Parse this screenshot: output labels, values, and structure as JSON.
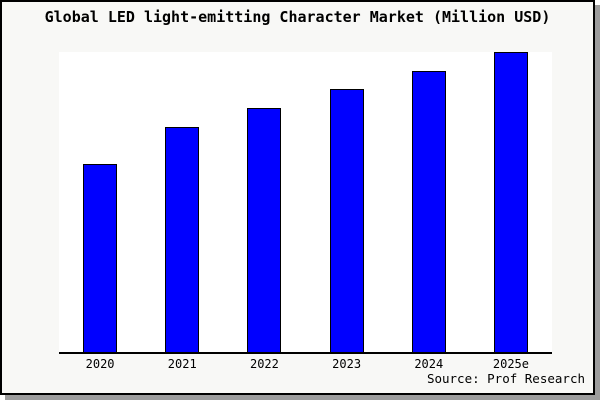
{
  "title": "Global LED light-emitting Character Market (Million USD)",
  "source": "Source: Prof Research",
  "colors": {
    "bar_fill": "#0000ff",
    "bar_border": "#000000",
    "figure_bg": "#f8f8f6",
    "plot_bg": "#ffffff",
    "axis": "#000000",
    "text": "#000000"
  },
  "chart_data": {
    "type": "bar",
    "title": "Global LED light-emitting Character Market (Million USD)",
    "categories": [
      "2020",
      "2021",
      "2022",
      "2023",
      "2024",
      "2025e"
    ],
    "values": [
      62.7,
      75.0,
      81.3,
      87.7,
      93.7,
      100.0
    ],
    "value_note": "y-axis has no tick labels; values estimated from bar heights as percent of the 2025e bar",
    "xlabel": "",
    "ylabel": "",
    "ylim": [
      0,
      100
    ],
    "grid": false,
    "legend": false,
    "annotations": [
      "Source: Prof Research"
    ]
  }
}
